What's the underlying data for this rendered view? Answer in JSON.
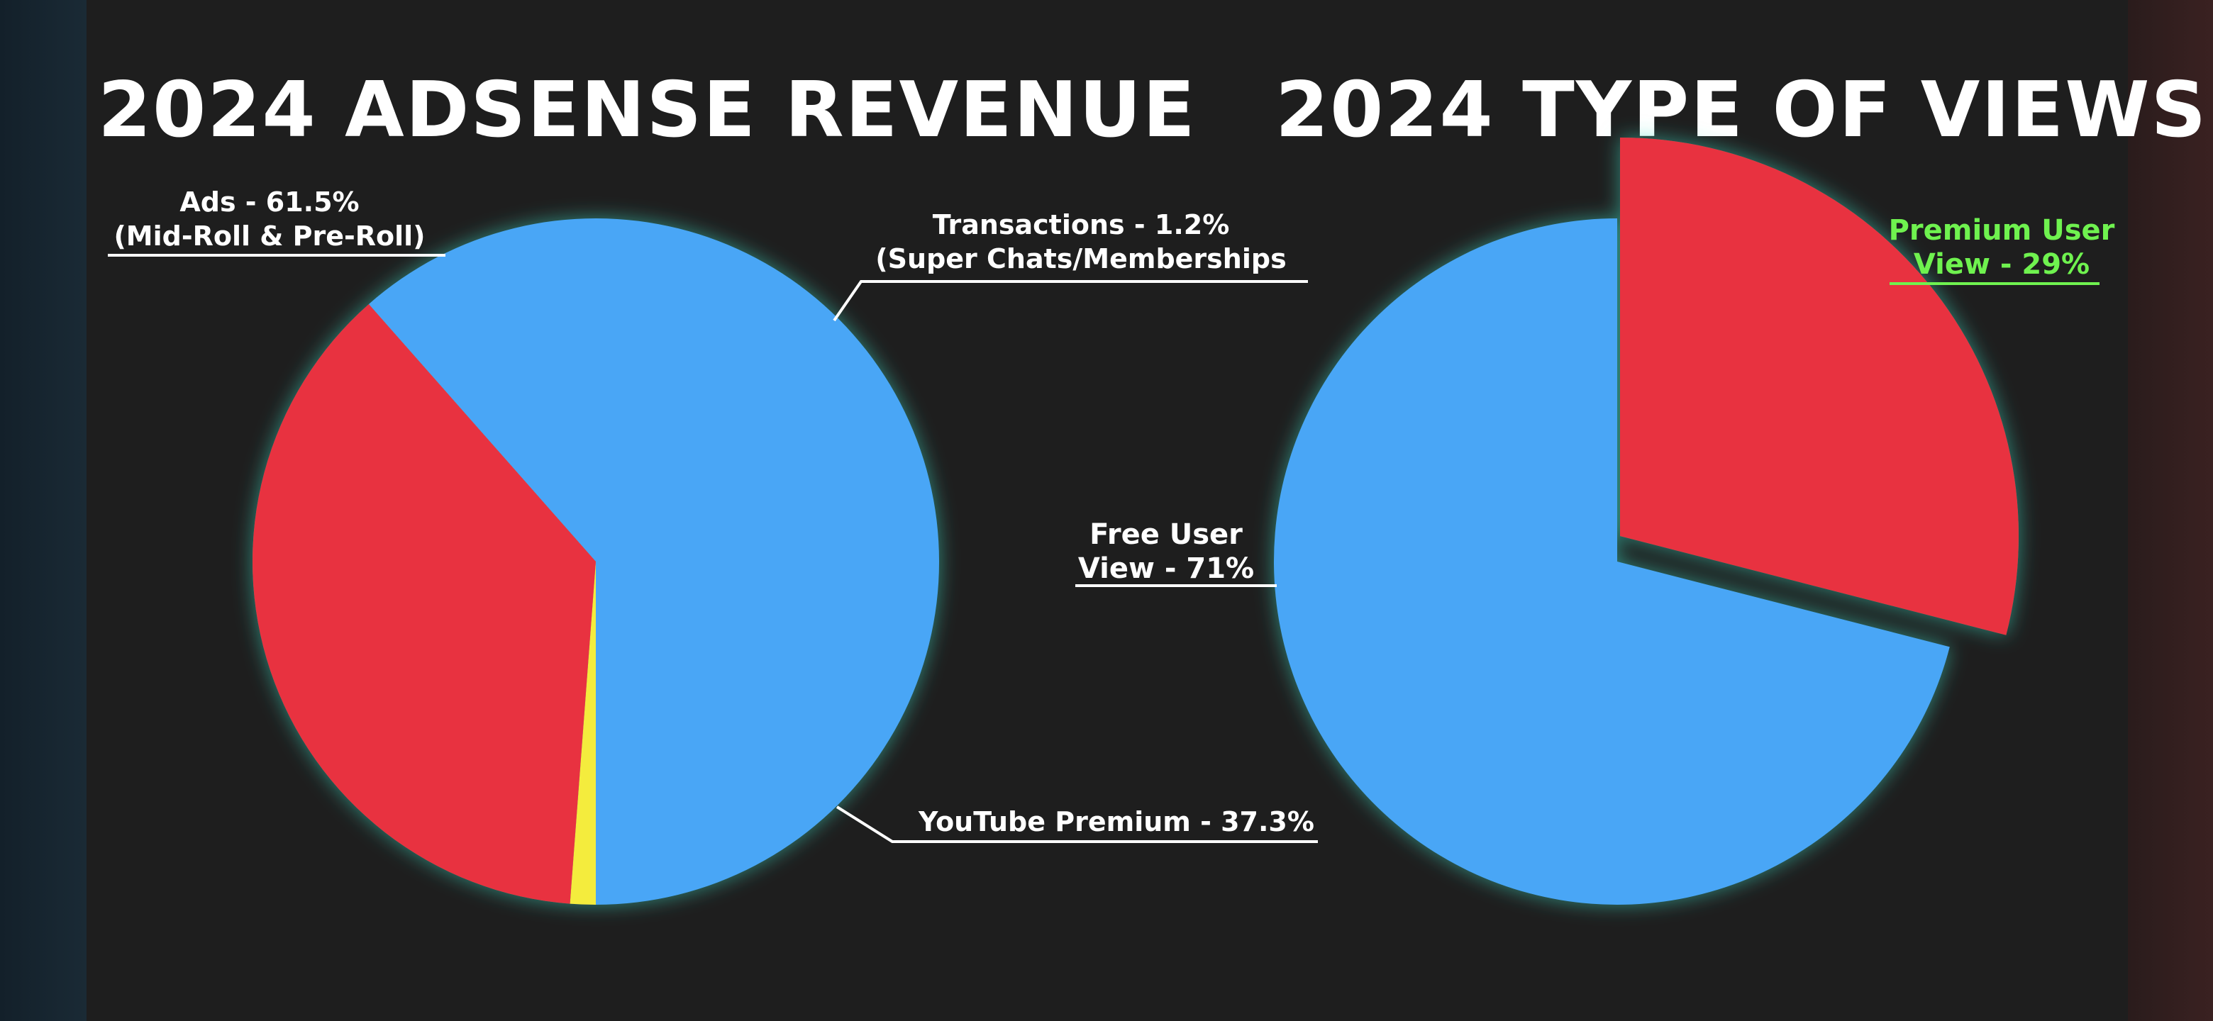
{
  "chart_data": [
    {
      "type": "pie",
      "title": "2024 ADSENSE REVENUE",
      "slices": [
        {
          "label": "Ads - 61.5%",
          "sublabel": "(Mid-Roll & Pre-Roll)",
          "value": 61.5,
          "color": "#4aa6f6"
        },
        {
          "label": "Transactions - 1.2%",
          "sublabel": "(Super Chats/Memberships",
          "value": 1.2,
          "color": "#f4ec3c"
        },
        {
          "label": "YouTube Premium - 37.3%",
          "sublabel": "",
          "value": 37.3,
          "color": "#e8323f"
        }
      ]
    },
    {
      "type": "pie",
      "title": "2024 TYPE OF VIEWS",
      "slices": [
        {
          "label": "Premium User",
          "sublabel": "View - 29%",
          "value": 29,
          "color": "#e8323f",
          "label_color": "#6ff24f",
          "exploded": true
        },
        {
          "label": "Free User",
          "sublabel": "View - 71%",
          "value": 71,
          "color": "#4aa6f6"
        }
      ]
    }
  ],
  "colors": {
    "background": "#1e1e1e",
    "glow": "#3fe0c8",
    "leader": "#ffffff"
  }
}
